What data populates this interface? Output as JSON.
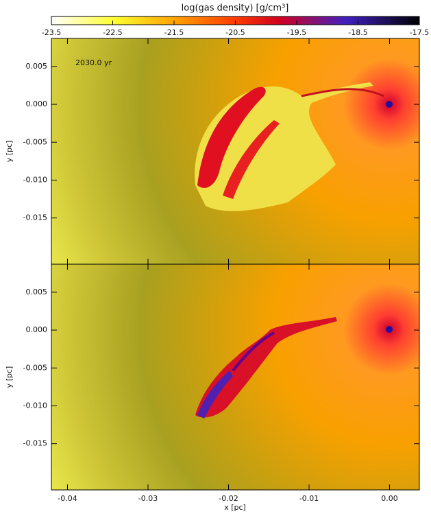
{
  "chart_data": {
    "type": "heatmap",
    "title": "log(gas density) [g/cm³]",
    "colorbar_lim": [
      -23.5,
      -17.5
    ],
    "colorbar_ticks": [
      -23.5,
      -22.5,
      -21.5,
      -20.5,
      -19.5,
      -18.5,
      -17.5
    ],
    "annotation": "2030.0 yr",
    "xlabel": "x [pc]",
    "ylabel": "y [pc]",
    "xlim": [
      -0.042,
      0.0037
    ],
    "xticks": [
      -0.04,
      -0.03,
      -0.02,
      -0.01,
      {
        "value": 0,
        "label": "0.00"
      }
    ],
    "ylim": [
      -0.0211,
      0.0087
    ],
    "yticks": [
      0.005,
      {
        "value": 0,
        "label": "0.000"
      },
      -0.005,
      {
        "value": -0.01,
        "label": "-0.010"
      },
      -0.015
    ]
  }
}
